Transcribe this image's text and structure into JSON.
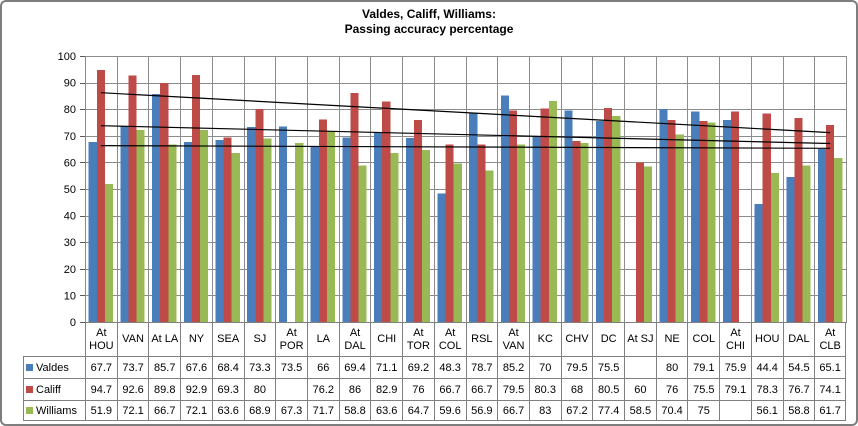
{
  "title": {
    "line1": "Valdes, Califf, Williams:",
    "line2": "Passing accuracy percentage"
  },
  "colors": {
    "valdes": "#4A7EBB",
    "califf": "#BE4B48",
    "williams": "#98B954",
    "gridline": "#8C8C8C",
    "plot_border": "#8C8C8C",
    "table_border": "#808080",
    "frame_border": "#7E7E7E",
    "axis": "#595959",
    "axis_text": "#000000",
    "trendline": "#000000"
  },
  "chart_data": {
    "type": "bar",
    "title": "Valdes, Califf, Williams: Passing accuracy percentage",
    "xlabel": "",
    "ylabel": "",
    "ylim": [
      0,
      100
    ],
    "yticks": [
      0,
      10,
      20,
      30,
      40,
      50,
      60,
      70,
      80,
      90,
      100
    ],
    "grid": true,
    "vertical_grid": true,
    "legend_position": "data-table-rows",
    "categories": [
      "At HOU",
      "VAN",
      "At LA",
      "NY",
      "SEA",
      "SJ",
      "At POR",
      "LA",
      "At DAL",
      "CHI",
      "At TOR",
      "At COL",
      "RSL",
      "At VAN",
      "KC",
      "CHV",
      "DC",
      "At SJ",
      "NE",
      "COL",
      "At CHI",
      "HOU",
      "DAL",
      "At CLB"
    ],
    "series": [
      {
        "name": "Valdes",
        "color": "#4A7EBB",
        "values": [
          67.7,
          73.7,
          85.7,
          67.6,
          68.4,
          73.3,
          73.5,
          66,
          69.4,
          71.1,
          69.2,
          48.3,
          78.7,
          85.2,
          70,
          79.5,
          75.5,
          null,
          80,
          79.1,
          75.9,
          44.4,
          54.5,
          65.1
        ],
        "labels": [
          "67.7",
          "73.7",
          "85.7",
          "67.6",
          "68.4",
          "73.3",
          "73.5",
          "66",
          "69.4",
          "71.1",
          "69.2",
          "48.3",
          "78.7",
          "85.2",
          "70",
          "79.5",
          "75.5",
          "",
          "80",
          "79.1",
          "75.9",
          "44.4",
          "54.5",
          "65.1"
        ]
      },
      {
        "name": "Califf",
        "color": "#BE4B48",
        "values": [
          94.7,
          92.6,
          89.8,
          92.9,
          69.3,
          80,
          null,
          76.2,
          86,
          82.9,
          76,
          66.7,
          66.7,
          79.5,
          80.3,
          68,
          80.5,
          60,
          76,
          75.5,
          79.1,
          78.3,
          76.7,
          74.1
        ],
        "labels": [
          "94.7",
          "92.6",
          "89.8",
          "92.9",
          "69.3",
          "80",
          "",
          "76.2",
          "86",
          "82.9",
          "76",
          "66.7",
          "66.7",
          "79.5",
          "80.3",
          "68",
          "80.5",
          "60",
          "76",
          "75.5",
          "79.1",
          "78.3",
          "76.7",
          "74.1"
        ]
      },
      {
        "name": "Williams",
        "color": "#98B954",
        "values": [
          51.9,
          72.1,
          66.7,
          72.1,
          63.6,
          68.9,
          67.3,
          71.7,
          58.8,
          63.6,
          64.7,
          59.6,
          56.9,
          66.7,
          83,
          67.2,
          77.4,
          58.5,
          70.4,
          75,
          null,
          56.1,
          58.8,
          61.7
        ],
        "labels": [
          "51.9",
          "72.1",
          "66.7",
          "72.1",
          "63.6",
          "68.9",
          "67.3",
          "71.7",
          "58.8",
          "63.6",
          "64.7",
          "59.6",
          "56.9",
          "66.7",
          "83",
          "67.2",
          "77.4",
          "58.5",
          "70.4",
          "75",
          "",
          "56.1",
          "58.8",
          "61.7"
        ]
      }
    ],
    "trendlines": [
      {
        "series": "Califf",
        "color": "#000000",
        "start_value": 86.2,
        "end_value": 71.2
      },
      {
        "series": "Valdes",
        "color": "#000000",
        "start_value": 73.8,
        "end_value": 67.1
      },
      {
        "series": "Williams",
        "color": "#000000",
        "start_value": 66.3,
        "end_value": 65.3
      }
    ]
  }
}
